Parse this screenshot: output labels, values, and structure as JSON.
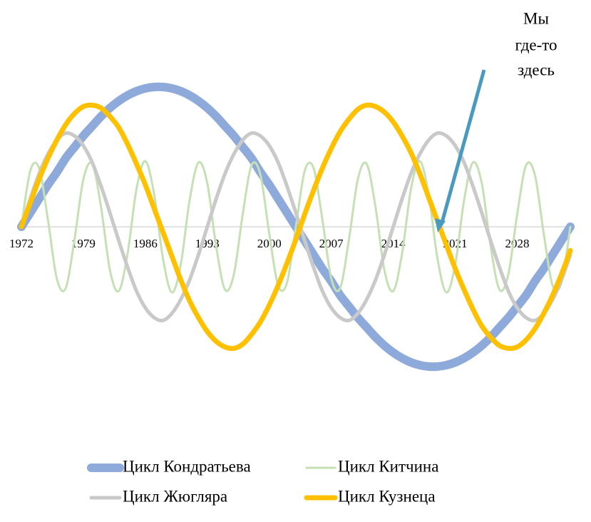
{
  "chart_data": {
    "type": "line",
    "annotation": [
      "Мы",
      "где-то",
      "здесь"
    ],
    "x": [
      1972,
      1973,
      1974,
      1975,
      1976,
      1977,
      1978,
      1979,
      1980,
      1981,
      1982,
      1983,
      1984,
      1985,
      1986,
      1987,
      1988,
      1989,
      1990,
      1991,
      1992,
      1993,
      1994,
      1995,
      1996,
      1997,
      1998,
      1999,
      2000,
      2001,
      2002,
      2003,
      2004,
      2005,
      2006,
      2007,
      2008,
      2009,
      2010,
      2011,
      2012,
      2013,
      2014,
      2015,
      2016,
      2017,
      2018,
      2019,
      2020,
      2021,
      2022,
      2023,
      2024,
      2025,
      2026,
      2027,
      2028,
      2029,
      2030,
      2031,
      2032,
      2033,
      2034
    ],
    "xlim": [
      1972,
      2034
    ],
    "xticks": [
      1972,
      1979,
      1986,
      1993,
      2000,
      2007,
      2014,
      2021,
      2028
    ],
    "ylim": [
      -1.5,
      1.5
    ],
    "series": [
      {
        "name": "Цикл Кондратьева",
        "color": "#8eaadb",
        "values": [
          0,
          0.1,
          0.2,
          0.3,
          0.39,
          0.49,
          0.57,
          0.65,
          0.72,
          0.79,
          0.85,
          0.9,
          0.94,
          0.97,
          0.99,
          1,
          1,
          0.99,
          0.97,
          0.94,
          0.9,
          0.85,
          0.79,
          0.72,
          0.65,
          0.57,
          0.49,
          0.39,
          0.3,
          0.2,
          0.1,
          0,
          -0.1,
          -0.2,
          -0.3,
          -0.39,
          -0.49,
          -0.57,
          -0.65,
          -0.72,
          -0.79,
          -0.85,
          -0.9,
          -0.94,
          -0.97,
          -0.99,
          -1,
          -1,
          -0.99,
          -0.97,
          -0.94,
          -0.9,
          -0.85,
          -0.79,
          -0.72,
          -0.65,
          -0.57,
          -0.49,
          -0.39,
          -0.3,
          -0.2,
          -0.1,
          0
        ]
      },
      {
        "name": "Цикл Китчина",
        "color": "#c5e0b4",
        "values": [
          0,
          0.4,
          0.42,
          0.05,
          -0.37,
          -0.44,
          -0.09,
          0.34,
          0.45,
          0.14,
          -0.31,
          -0.46,
          -0.19,
          0.27,
          0.47,
          0.23,
          -0.23,
          -0.47,
          -0.27,
          0.19,
          0.46,
          0.31,
          -0.14,
          -0.45,
          -0.34,
          0.09,
          0.44,
          0.37,
          -0.05,
          -0.42,
          -0.4,
          0,
          0.4,
          0.42,
          0.05,
          -0.37,
          -0.44,
          -0.09,
          0.34,
          0.45,
          0.14,
          -0.31,
          -0.46,
          -0.19,
          0.27,
          0.47,
          0.23,
          -0.23,
          -0.47,
          -0.27,
          0.19,
          0.46,
          0.31,
          -0.14,
          -0.45,
          -0.34,
          0.09,
          0.44,
          0.37,
          -0.05,
          -0.42,
          -0.4,
          0
        ]
      },
      {
        "name": "Цикл Жюгляра",
        "color": "#c9c9c9",
        "values": [
          0,
          0.2,
          0.38,
          0.52,
          0.62,
          0.67,
          0.65,
          0.58,
          0.46,
          0.29,
          0.1,
          -0.1,
          -0.29,
          -0.46,
          -0.58,
          -0.65,
          -0.67,
          -0.62,
          -0.52,
          -0.38,
          -0.2,
          0,
          0.2,
          0.38,
          0.52,
          0.62,
          0.67,
          0.65,
          0.58,
          0.46,
          0.29,
          0.1,
          -0.1,
          -0.29,
          -0.46,
          -0.58,
          -0.65,
          -0.67,
          -0.62,
          -0.52,
          -0.38,
          -0.2,
          0,
          0.2,
          0.38,
          0.52,
          0.62,
          0.67,
          0.65,
          0.58,
          0.46,
          0.29,
          0.1,
          -0.1,
          -0.29,
          -0.46,
          -0.58,
          -0.65,
          -0.67,
          -0.62,
          -0.52,
          -0.38,
          -0.2
        ]
      },
      {
        "name": "Цикл Кузнеца",
        "color": "#ffc000",
        "values": [
          0,
          0.17,
          0.34,
          0.49,
          0.62,
          0.73,
          0.81,
          0.86,
          0.87,
          0.85,
          0.79,
          0.71,
          0.59,
          0.45,
          0.3,
          0.13,
          -0.04,
          -0.21,
          -0.38,
          -0.53,
          -0.65,
          -0.75,
          -0.82,
          -0.86,
          -0.87,
          -0.84,
          -0.77,
          -0.68,
          -0.56,
          -0.42,
          -0.26,
          -0.09,
          0.09,
          0.26,
          0.42,
          0.56,
          0.68,
          0.77,
          0.84,
          0.87,
          0.86,
          0.82,
          0.75,
          0.65,
          0.53,
          0.38,
          0.21,
          0.04,
          -0.13,
          -0.3,
          -0.45,
          -0.59,
          -0.71,
          -0.79,
          -0.85,
          -0.87,
          -0.86,
          -0.81,
          -0.73,
          -0.62,
          -0.49,
          -0.34,
          -0.17
        ]
      }
    ]
  }
}
